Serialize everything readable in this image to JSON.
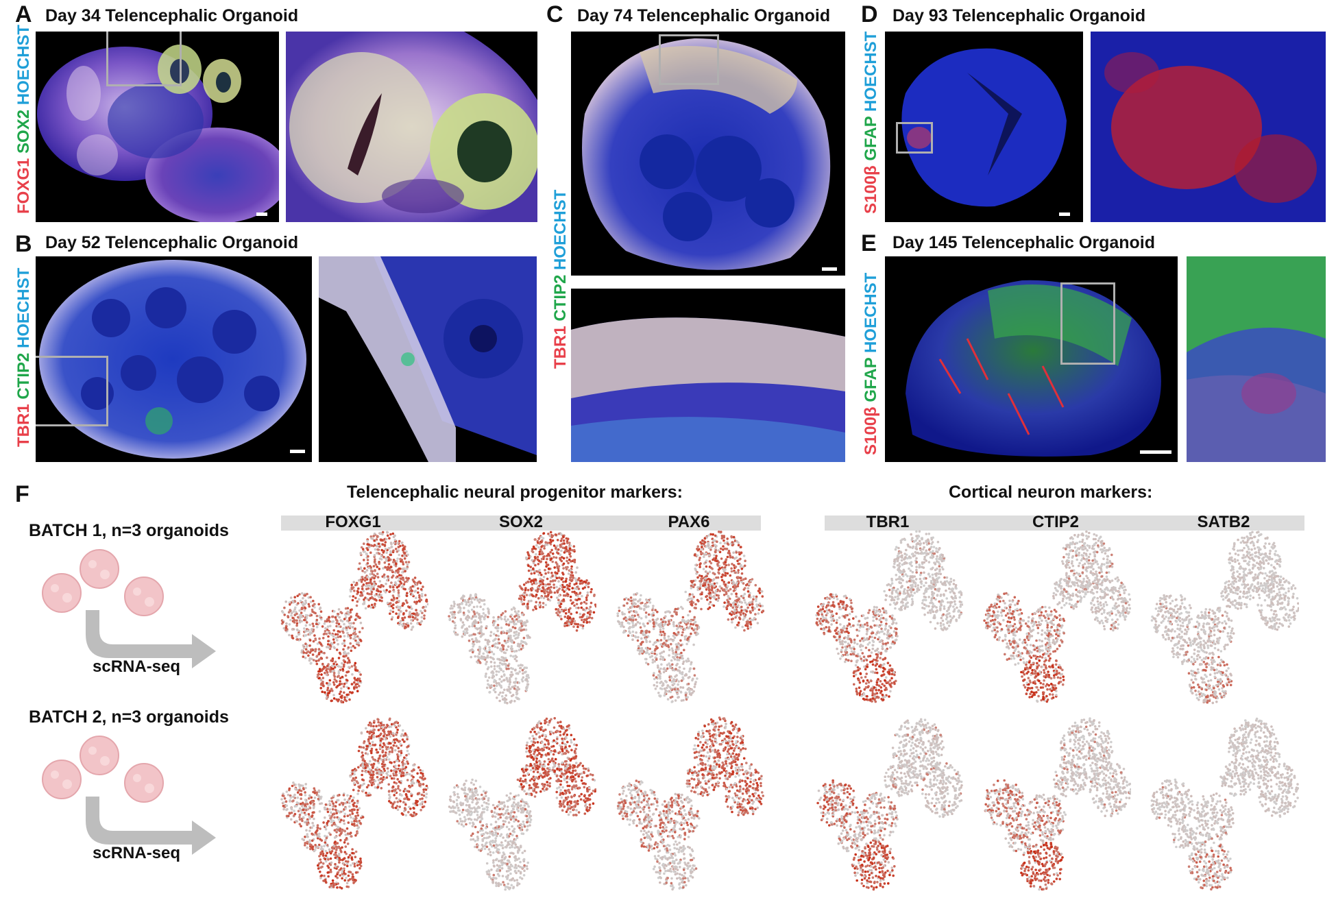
{
  "panels": {
    "A": {
      "letter": "A",
      "title": "Day 34 Telencephalic Organoid",
      "stains": [
        "FOXG1",
        "SOX2",
        "HOECHST"
      ]
    },
    "B": {
      "letter": "B",
      "title": "Day 52 Telencephalic Organoid",
      "stains": [
        "TBR1",
        "CTIP2",
        "HOECHST"
      ]
    },
    "C": {
      "letter": "C",
      "title": "Day 74 Telencephalic Organoid",
      "stains": [
        "TBR1",
        "CTIP2",
        "HOECHST"
      ]
    },
    "D": {
      "letter": "D",
      "title": "Day 93 Telencephalic Organoid",
      "stains": [
        "S100β",
        "GFAP",
        "HOECHST"
      ]
    },
    "E": {
      "letter": "E",
      "title": "Day 145 Telencephalic Organoid",
      "stains": [
        "S100β",
        "GFAP",
        "HOECHST"
      ]
    },
    "F": {
      "letter": "F"
    }
  },
  "stain_colors": {
    "red": "#e8404a",
    "green": "#1fa64a",
    "blue": "#1f9fd8"
  },
  "scrna": {
    "progenitor_title": "Telencephalic neural progenitor markers:",
    "neuron_title": "Cortical neuron markers:",
    "progenitor_genes": [
      "FOXG1",
      "SOX2",
      "PAX6"
    ],
    "neuron_genes": [
      "TBR1",
      "CTIP2",
      "SATB2"
    ],
    "batches": [
      {
        "label": "BATCH 1, n=3 organoids",
        "method": "scRNA-seq"
      },
      {
        "label": "BATCH 2, n=3 organoids",
        "method": "scRNA-seq"
      }
    ],
    "expression_colors": {
      "low": "#cfcfcf",
      "high": "#c8270f"
    }
  }
}
